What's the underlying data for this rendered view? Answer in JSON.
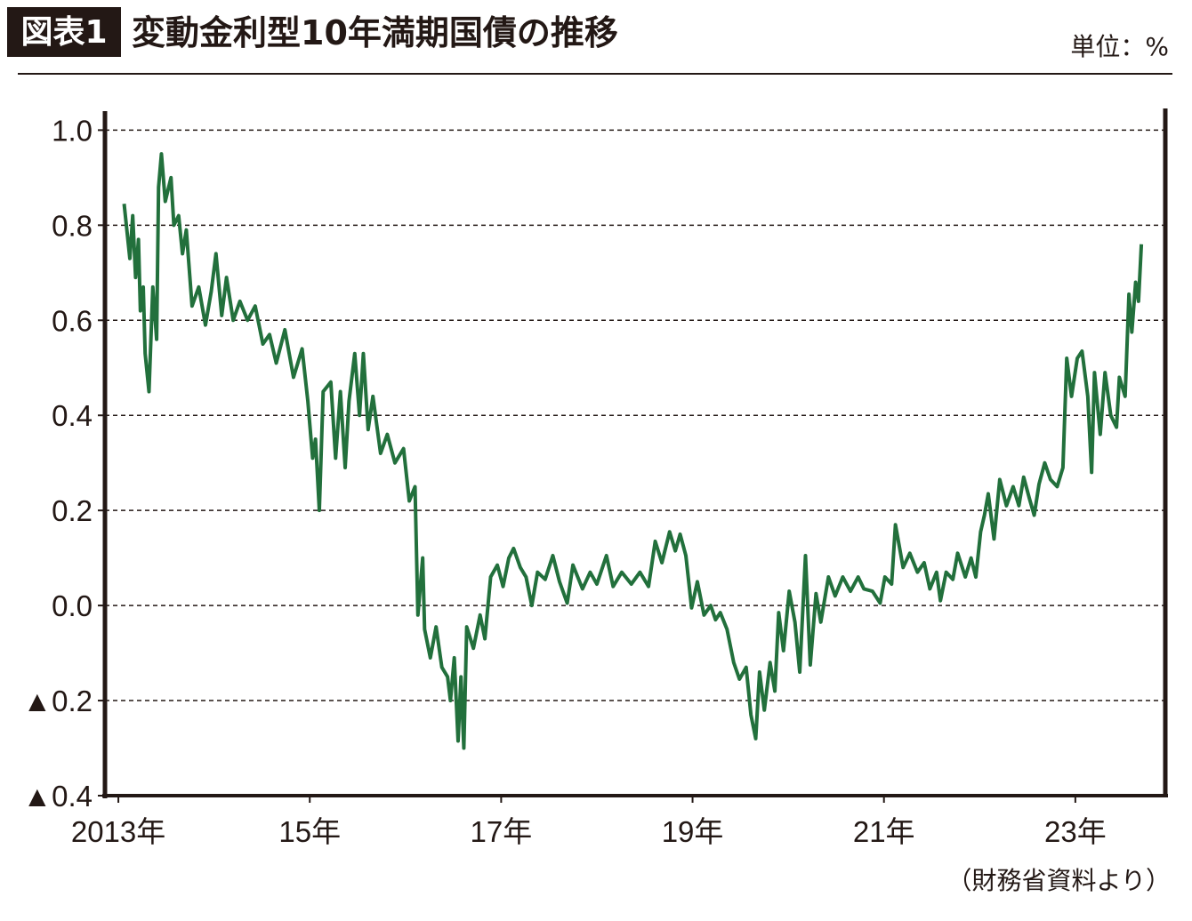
{
  "badge": "図表1",
  "unit": "単位：%",
  "source": "（財務省資料より）",
  "chart_data": {
    "type": "line",
    "title": "変動金利型10年満期国債の推移",
    "xlim": [
      2012.86,
      2023.94
    ],
    "xticks": [
      {
        "value": 2013,
        "label": "2013年"
      },
      {
        "value": 2015,
        "label": "15年"
      },
      {
        "value": 2017,
        "label": "17年"
      },
      {
        "value": 2019,
        "label": "19年"
      },
      {
        "value": 2021,
        "label": "21年"
      },
      {
        "value": 2023,
        "label": "23年"
      }
    ],
    "ylim": [
      -0.4,
      1.04
    ],
    "yticks": [
      {
        "value": -0.4,
        "label": "▲0.4"
      },
      {
        "value": -0.2,
        "label": "▲0.2"
      },
      {
        "value": 0,
        "label": "0.0"
      },
      0.2,
      0.4,
      0.6,
      0.8,
      {
        "value": 1,
        "label": "1.0"
      }
    ],
    "grid": true,
    "series": [
      {
        "color": "#22703c",
        "x": [
          2013.06,
          2013.12,
          2013.15,
          2013.18,
          2013.21,
          2013.23,
          2013.26,
          2013.28,
          2013.32,
          2013.36,
          2013.4,
          2013.42,
          2013.45,
          2013.49,
          2013.55,
          2013.58,
          2013.63,
          2013.67,
          2013.71,
          2013.77,
          2013.84,
          2013.91,
          2013.97,
          2014.02,
          2014.08,
          2014.13,
          2014.2,
          2014.27,
          2014.35,
          2014.43,
          2014.51,
          2014.58,
          2014.65,
          2014.74,
          2014.83,
          2014.92,
          2014.98,
          2015.03,
          2015.06,
          2015.1,
          2015.14,
          2015.22,
          2015.27,
          2015.32,
          2015.37,
          2015.41,
          2015.47,
          2015.52,
          2015.56,
          2015.61,
          2015.66,
          2015.74,
          2015.81,
          2015.89,
          2015.98,
          2016.04,
          2016.1,
          2016.13,
          2016.18,
          2016.2,
          2016.26,
          2016.32,
          2016.38,
          2016.44,
          2016.47,
          2016.51,
          2016.55,
          2016.58,
          2016.61,
          2016.64,
          2016.71,
          2016.78,
          2016.83,
          2016.89,
          2016.96,
          2017.02,
          2017.08,
          2017.13,
          2017.2,
          2017.26,
          2017.32,
          2017.38,
          2017.46,
          2017.54,
          2017.61,
          2017.69,
          2017.75,
          2017.85,
          2017.93,
          2018.0,
          2018.1,
          2018.17,
          2018.26,
          2018.36,
          2018.45,
          2018.54,
          2018.61,
          2018.68,
          2018.76,
          2018.82,
          2018.87,
          2018.93,
          2018.99,
          2019.05,
          2019.12,
          2019.19,
          2019.24,
          2019.29,
          2019.36,
          2019.43,
          2019.49,
          2019.56,
          2019.61,
          2019.66,
          2019.7,
          2019.75,
          2019.81,
          2019.86,
          2019.9,
          2019.95,
          2020.01,
          2020.07,
          2020.12,
          2020.18,
          2020.23,
          2020.29,
          2020.34,
          2020.42,
          2020.49,
          2020.57,
          2020.65,
          2020.73,
          2020.79,
          2020.88,
          2020.96,
          2021.01,
          2021.08,
          2021.12,
          2021.2,
          2021.27,
          2021.35,
          2021.42,
          2021.48,
          2021.55,
          2021.59,
          2021.65,
          2021.72,
          2021.77,
          2021.85,
          2021.91,
          2021.96,
          2022.01,
          2022.05,
          2022.09,
          2022.15,
          2022.21,
          2022.28,
          2022.35,
          2022.41,
          2022.46,
          2022.52,
          2022.57,
          2022.62,
          2022.68,
          2022.74,
          2022.81,
          2022.87,
          2022.91,
          2022.96,
          2023.02,
          2023.07,
          2023.13,
          2023.17,
          2023.2,
          2023.26,
          2023.31,
          2023.37,
          2023.43,
          2023.46,
          2023.52,
          2023.56,
          2023.59,
          2023.63,
          2023.66,
          2023.69
        ],
        "values": [
          0.845,
          0.73,
          0.82,
          0.69,
          0.77,
          0.62,
          0.67,
          0.53,
          0.45,
          0.67,
          0.56,
          0.88,
          0.95,
          0.85,
          0.9,
          0.8,
          0.82,
          0.74,
          0.79,
          0.63,
          0.67,
          0.59,
          0.66,
          0.74,
          0.61,
          0.69,
          0.6,
          0.64,
          0.6,
          0.63,
          0.55,
          0.57,
          0.51,
          0.58,
          0.48,
          0.54,
          0.43,
          0.31,
          0.35,
          0.2,
          0.45,
          0.47,
          0.31,
          0.45,
          0.29,
          0.43,
          0.53,
          0.4,
          0.53,
          0.37,
          0.44,
          0.32,
          0.36,
          0.3,
          0.33,
          0.22,
          0.25,
          -0.02,
          0.1,
          -0.05,
          -0.11,
          -0.045,
          -0.13,
          -0.15,
          -0.2,
          -0.11,
          -0.285,
          -0.15,
          -0.3,
          -0.045,
          -0.09,
          -0.02,
          -0.07,
          0.06,
          0.085,
          0.04,
          0.1,
          0.12,
          0.08,
          0.06,
          0,
          0.07,
          0.055,
          0.105,
          0.05,
          0.005,
          0.085,
          0.035,
          0.07,
          0.045,
          0.105,
          0.04,
          0.07,
          0.045,
          0.07,
          0.04,
          0.135,
          0.09,
          0.155,
          0.115,
          0.15,
          0.105,
          -0.005,
          0.05,
          -0.02,
          0,
          -0.03,
          -0.015,
          -0.05,
          -0.12,
          -0.155,
          -0.13,
          -0.23,
          -0.28,
          -0.14,
          -0.22,
          -0.12,
          -0.18,
          -0.015,
          -0.095,
          0.03,
          -0.035,
          -0.14,
          0.105,
          -0.125,
          0.025,
          -0.035,
          0.06,
          0.02,
          0.06,
          0.03,
          0.06,
          0.035,
          0.03,
          0.005,
          0.06,
          0.045,
          0.17,
          0.08,
          0.11,
          0.07,
          0.09,
          0.035,
          0.07,
          0.01,
          0.07,
          0.055,
          0.11,
          0.06,
          0.1,
          0.06,
          0.155,
          0.19,
          0.235,
          0.14,
          0.265,
          0.21,
          0.25,
          0.21,
          0.27,
          0.225,
          0.19,
          0.255,
          0.3,
          0.265,
          0.25,
          0.29,
          0.52,
          0.44,
          0.52,
          0.535,
          0.44,
          0.28,
          0.49,
          0.36,
          0.49,
          0.4,
          0.375,
          0.48,
          0.44,
          0.655,
          0.575,
          0.68,
          0.64,
          0.76
        ]
      }
    ]
  }
}
